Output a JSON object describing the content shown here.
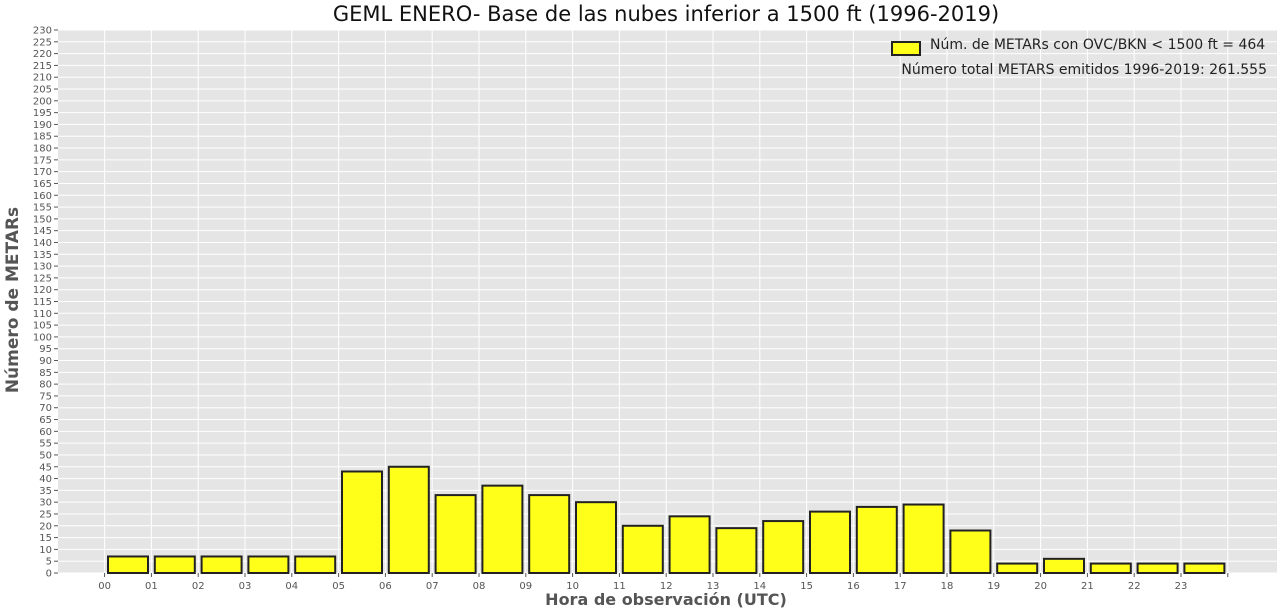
{
  "chart_data": {
    "type": "bar",
    "title": "GEML ENERO- Base de las nubes inferior a 1500 ft (1996-2019)",
    "xlabel": "Hora de observación (UTC)",
    "ylabel": "Número de METARs",
    "categories": [
      "00",
      "01",
      "02",
      "03",
      "04",
      "05",
      "06",
      "07",
      "08",
      "09",
      "10",
      "11",
      "12",
      "13",
      "14",
      "15",
      "16",
      "17",
      "18",
      "19",
      "20",
      "21",
      "22",
      "23"
    ],
    "series": [
      {
        "name": "Núm. de METARs con OVC/BKN < 1500 ft = 464",
        "values": [
          7,
          7,
          7,
          7,
          7,
          43,
          45,
          33,
          37,
          33,
          30,
          20,
          24,
          19,
          22,
          26,
          28,
          29,
          18,
          4,
          6,
          4,
          4,
          4
        ],
        "color": "#ffff19",
        "edge_color": "#222222"
      }
    ],
    "annotation": "Número total METARS emitidos 1996-2019: 261.555",
    "ylim": [
      0,
      230
    ],
    "ytick_step": 5,
    "grid": true,
    "legend_position": "top-right",
    "background_color": "#e5e5e5",
    "grid_color": "#ffffff"
  }
}
